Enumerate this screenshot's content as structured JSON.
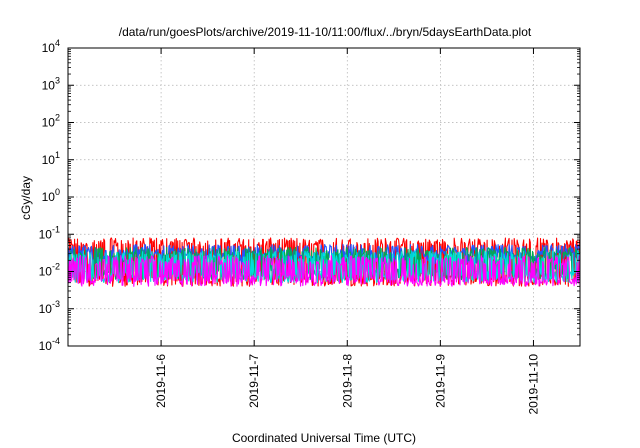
{
  "chart_data": {
    "type": "line",
    "title": "/data/run/goesPlots/archive/2019-11-10/11:00/flux/../bryn/5daysEarthData.plot",
    "xlabel": "Coordinated Universal Time (UTC)",
    "ylabel": "cGy/day",
    "yscale": "log",
    "ylim_exp": [
      -4,
      4
    ],
    "y_ticks": [
      {
        "base": "10",
        "exp": "-4"
      },
      {
        "base": "10",
        "exp": "-3"
      },
      {
        "base": "10",
        "exp": "-2"
      },
      {
        "base": "10",
        "exp": "-1"
      },
      {
        "base": "10",
        "exp": "0"
      },
      {
        "base": "10",
        "exp": "1"
      },
      {
        "base": "10",
        "exp": "2"
      },
      {
        "base": "10",
        "exp": "3"
      },
      {
        "base": "10",
        "exp": "4"
      }
    ],
    "x_range_days": [
      "2019-11-05",
      "2019-11-10"
    ],
    "x_ticks": [
      "2019-11-6",
      "2019-11-7",
      "2019-11-8",
      "2019-11-9",
      "2019-11-10"
    ],
    "grid": true,
    "series": [
      {
        "color": "#ff0000",
        "typical_low": 0.004,
        "typical_high": 0.045
      },
      {
        "color": "#2255ff",
        "typical_low": 0.015,
        "typical_high": 0.03
      },
      {
        "color": "#00aa55",
        "typical_low": 0.006,
        "typical_high": 0.025
      },
      {
        "color": "#00dddd",
        "typical_low": 0.005,
        "typical_high": 0.02
      },
      {
        "color": "#ff00ff",
        "typical_low": 0.004,
        "typical_high": 0.015
      }
    ]
  }
}
